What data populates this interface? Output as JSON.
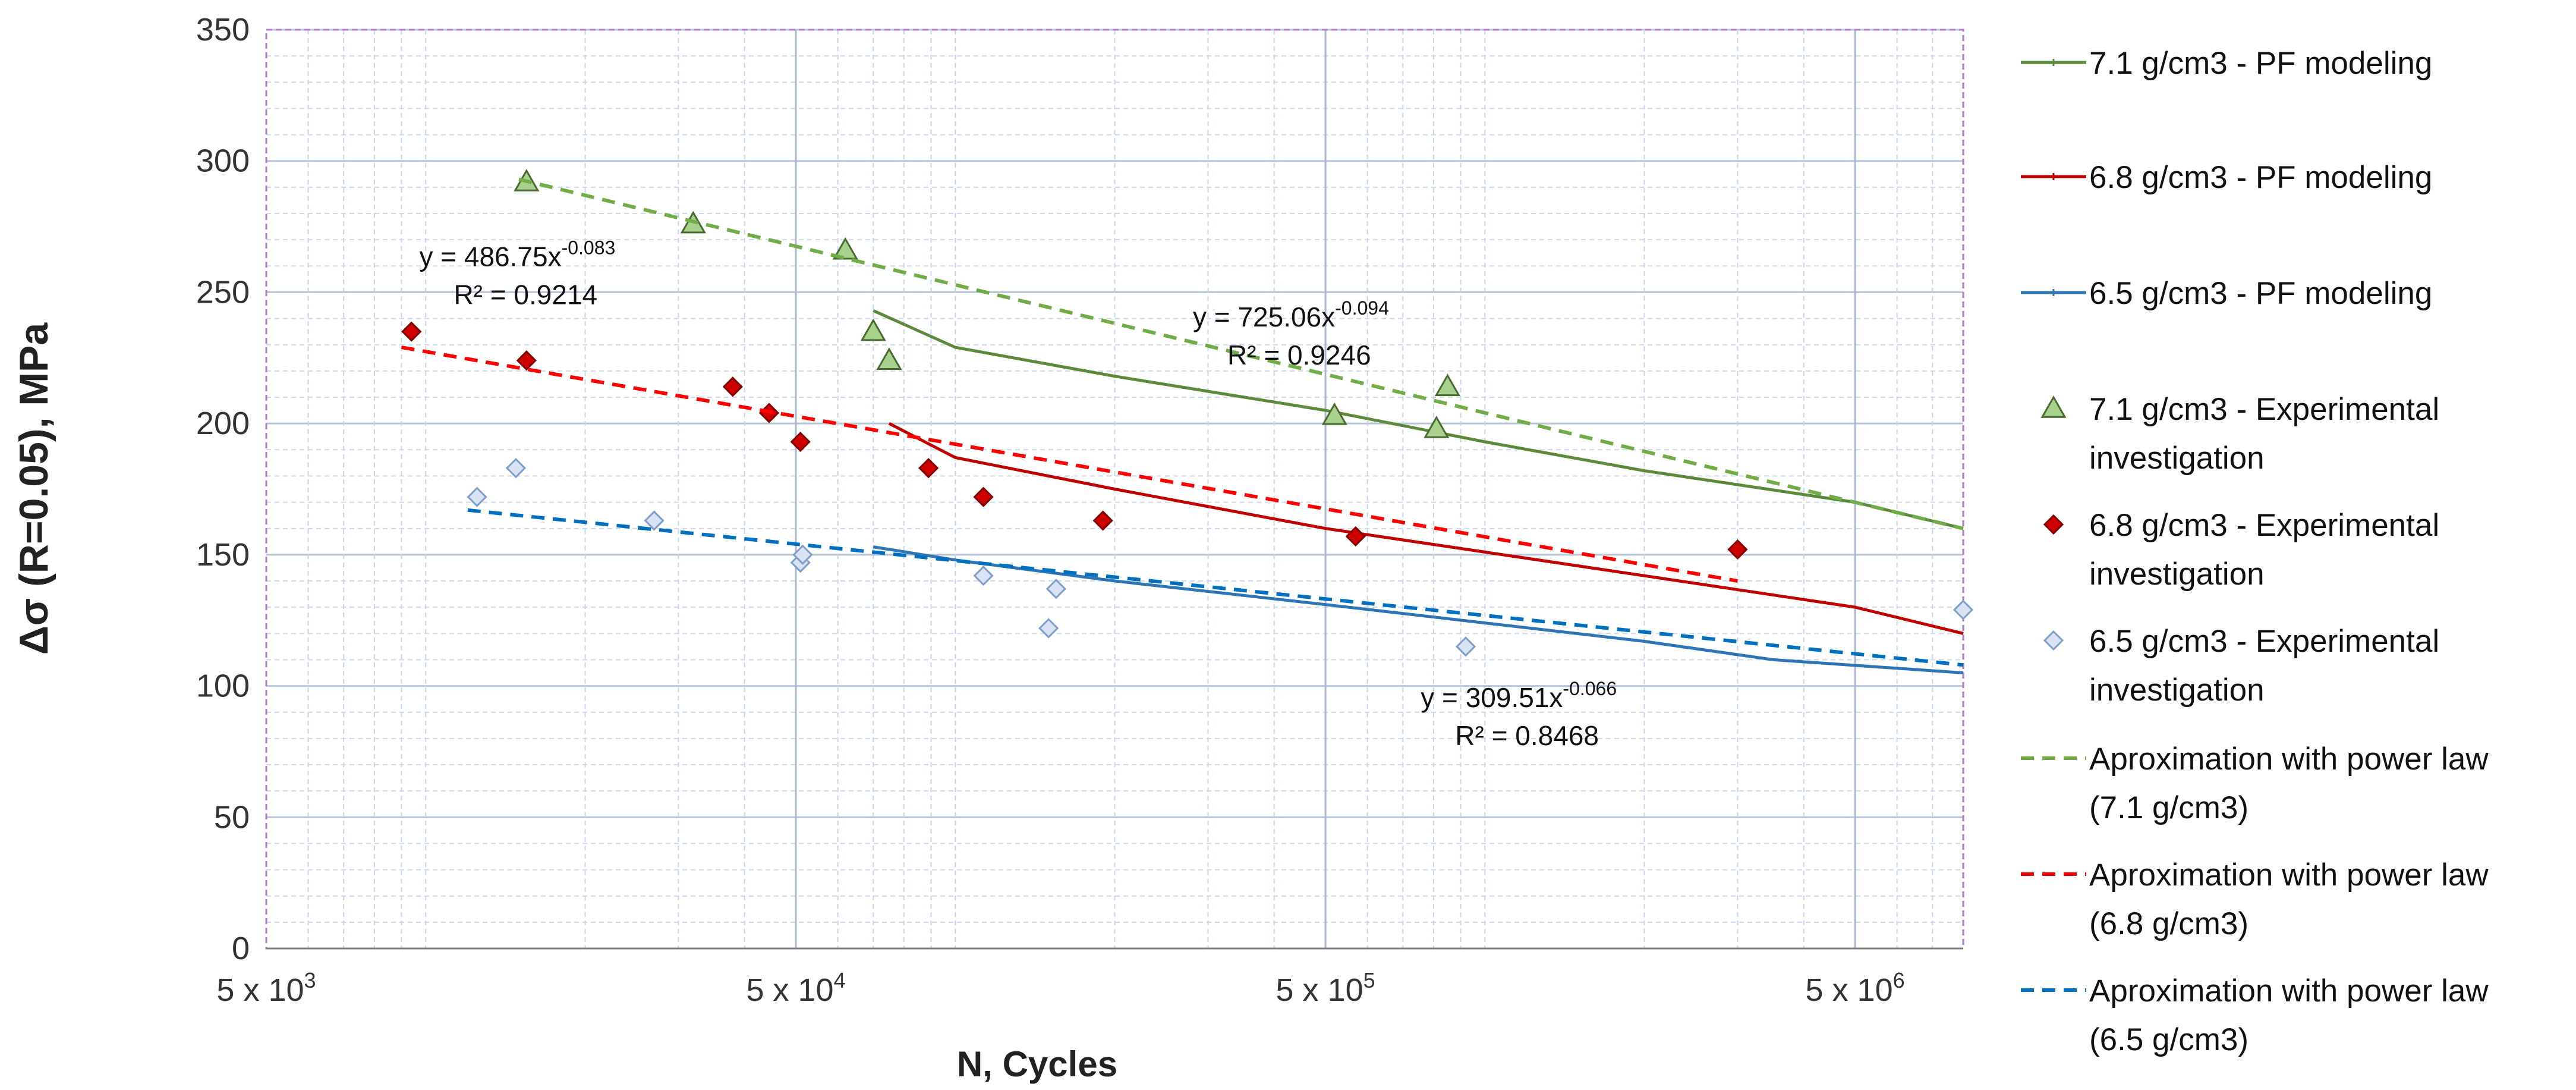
{
  "chart_data": {
    "type": "scatter",
    "x_scale": "log",
    "xlabel": "N,  Cycles",
    "ylabel": "Δσ (R=0.05), MPa",
    "xlim": [
      5000,
      8000000
    ],
    "ylim": [
      0,
      350
    ],
    "y_ticks": [
      0,
      50,
      100,
      150,
      200,
      250,
      300,
      350
    ],
    "x_tick_values": [
      5000,
      50000,
      500000,
      5000000
    ],
    "x_tick_labels": [
      "5 x 10",
      "5 x 10",
      "5 x 10",
      "5 x 10"
    ],
    "x_tick_exponents": [
      "3",
      "4",
      "5",
      "6"
    ],
    "grid": true,
    "legend_position": "right",
    "series": [
      {
        "name": "7.1 g/cm3 - PF modeling",
        "kind": "line",
        "color": "#5b8a3a",
        "x": [
          70000,
          100000,
          200000,
          500000,
          1000000,
          2000000,
          5000000,
          8000000
        ],
        "y": [
          243,
          229,
          218,
          205,
          193,
          182,
          170,
          160
        ]
      },
      {
        "name": "6.8 g/cm3 - PF modeling",
        "kind": "line",
        "color": "#c00000",
        "x": [
          75000,
          100000,
          200000,
          500000,
          1000000,
          2000000,
          5000000,
          8000000
        ],
        "y": [
          200,
          187,
          175,
          160,
          151,
          142,
          130,
          120
        ]
      },
      {
        "name": "6.5 g/cm3 - PF modeling",
        "kind": "line",
        "color": "#2e75b6",
        "x": [
          70000,
          100000,
          200000,
          500000,
          1000000,
          2000000,
          3500000,
          8000000
        ],
        "y": [
          153,
          148,
          140,
          131,
          124,
          117,
          110,
          105
        ]
      },
      {
        "name": "7.1 g/cm3 - Experimental investigation",
        "kind": "marker",
        "marker": "triangle",
        "color": "#a9d18e",
        "stroke": "#4a6b2f",
        "x": [
          15500,
          32000,
          62000,
          70000,
          75000,
          520000,
          850000,
          810000
        ],
        "y": [
          292,
          276,
          266,
          235,
          224,
          203,
          214,
          198
        ]
      },
      {
        "name": "6.8 g/cm3 - Experimental investigation",
        "kind": "marker",
        "marker": "diamond",
        "color": "#d00000",
        "stroke": "#800000",
        "x": [
          9400,
          15500,
          38000,
          44500,
          51000,
          89000,
          113000,
          190000,
          570000,
          3000000
        ],
        "y": [
          235,
          224,
          214,
          204,
          193,
          183,
          172,
          163,
          157,
          152
        ]
      },
      {
        "name": "6.5 g/cm3 - Experimental investigation",
        "kind": "marker",
        "marker": "diamond",
        "color": "#dae3f3",
        "stroke": "#7f9fc9",
        "x": [
          12500,
          14800,
          27000,
          51000,
          51500,
          113000,
          150000,
          155000,
          920000,
          8000000
        ],
        "y": [
          172,
          183,
          163,
          147,
          150,
          142,
          122,
          137,
          115,
          129
        ]
      },
      {
        "name": "Aproximation with power law (7.1 g/cm3)",
        "kind": "dashed",
        "color": "#70ad47",
        "x": [
          15000,
          8000000
        ],
        "y": [
          293,
          160
        ]
      },
      {
        "name": "Aproximation with power law (6.8 g/cm3)",
        "kind": "dashed",
        "color": "#ff0000",
        "x": [
          9000,
          3000000
        ],
        "y": [
          229,
          140
        ]
      },
      {
        "name": "Aproximation with power law (6.5 g/cm3)",
        "kind": "dashed",
        "color": "#0070c0",
        "x": [
          12000,
          8000000
        ],
        "y": [
          167,
          108
        ]
      }
    ],
    "annotations": [
      {
        "name": "eq-68",
        "anchor_x": 9000,
        "anchor_y": 260,
        "line1": "y = 486.75x",
        "exponent": "-0.083",
        "line2": "R² = 0.9214"
      },
      {
        "name": "eq-71",
        "anchor_x": 260000,
        "anchor_y": 237,
        "line1": "y = 725.06x",
        "exponent": "-0.094",
        "line2": "R² = 0.9246"
      },
      {
        "name": "eq-65",
        "anchor_x": 700000,
        "anchor_y": 92,
        "line1": "y = 309.51x",
        "exponent": "-0.066",
        "line2": "R² = 0.8468"
      }
    ],
    "legend": [
      {
        "line1": "7.1 g/cm3 - PF modeling",
        "line2": "",
        "style": "line",
        "color": "#5b8a3a"
      },
      {
        "line1": "6.8 g/cm3 - PF modeling",
        "line2": "",
        "style": "line",
        "color": "#c00000"
      },
      {
        "line1": "6.5 g/cm3 - PF modeling",
        "line2": "",
        "style": "line",
        "color": "#2e75b6"
      },
      {
        "line1": "7.1 g/cm3 - Experimental",
        "line2": "investigation",
        "style": "triangle",
        "color": "#a9d18e",
        "stroke": "#4a6b2f"
      },
      {
        "line1": "6.8 g/cm3 - Experimental",
        "line2": "investigation",
        "style": "diamond",
        "color": "#d00000",
        "stroke": "#800000"
      },
      {
        "line1": "6.5 g/cm3 - Experimental",
        "line2": "investigation",
        "style": "diamond",
        "color": "#dae3f3",
        "stroke": "#7f9fc9"
      },
      {
        "line1": "Aproximation with power law",
        "line2": "(7.1 g/cm3)",
        "style": "dashed",
        "color": "#70ad47"
      },
      {
        "line1": "Aproximation with power law",
        "line2": "(6.8 g/cm3)",
        "style": "dashed",
        "color": "#ff0000"
      },
      {
        "line1": "Aproximation with power law",
        "line2": "(6.5 g/cm3)",
        "style": "dashed",
        "color": "#0070c0"
      }
    ]
  }
}
